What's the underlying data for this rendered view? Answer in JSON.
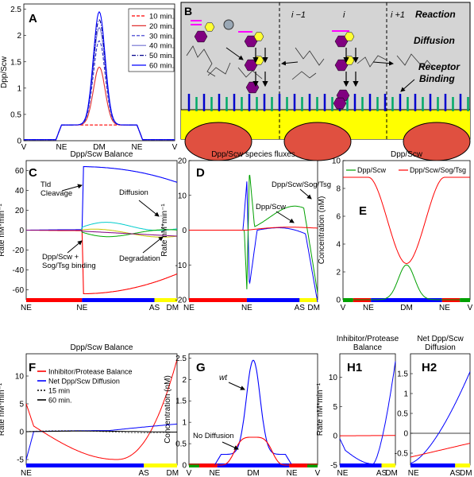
{
  "chart_data": [
    {
      "panel": "A",
      "type": "line",
      "ylabel": "Dpp/Scw",
      "xticks": [
        "V",
        "NE",
        "DM",
        "NE",
        "V"
      ],
      "ylim": [
        0,
        2.6
      ],
      "yticks": [
        "0",
        "0.5",
        "1",
        "1.5",
        "2",
        "2.5"
      ],
      "legend_position": "top-right",
      "series": [
        {
          "name": "10 min.",
          "color": "#ff0000",
          "dash": "dashed",
          "peak": 0.3
        },
        {
          "name": "20 min.",
          "color": "#e03030",
          "dash": "solid",
          "peak": 1.4
        },
        {
          "name": "30 min.",
          "color": "#3030cc",
          "dash": "dashed",
          "peak": 1.9
        },
        {
          "name": "40 min.",
          "color": "#7070d0",
          "dash": "solid",
          "peak": 2.15
        },
        {
          "name": "50 min.",
          "color": "#00008b",
          "dash": "dashdot",
          "peak": 2.3
        },
        {
          "name": "60 min.",
          "color": "#0000ff",
          "dash": "solid",
          "peak": 2.45
        }
      ]
    },
    {
      "panel": "C",
      "type": "line",
      "title": "Dpp/Scw Balance",
      "ylabel": "Rate nM*min⁻¹",
      "ylim": [
        -70,
        70
      ],
      "yticks": [
        "-60",
        "-40",
        "-20",
        "0",
        "20",
        "40",
        "60"
      ],
      "xticks": [
        "NE",
        "NE",
        "AS",
        "DM"
      ],
      "annotations": [
        "Tld\nCleavage",
        "Diffusion",
        "Dpp/Scw +\nSog/Tsg binding",
        "Degradation"
      ]
    },
    {
      "panel": "D",
      "type": "line",
      "title": "Dpp/Scw species fluxes",
      "ylabel": "Rate nM*min⁻¹",
      "ylim": [
        -20,
        20
      ],
      "yticks": [
        "-20",
        "-10",
        "0",
        "10",
        "20"
      ],
      "xticks": [
        "NE",
        "NE",
        "AS",
        "DM"
      ],
      "annotations": [
        "Dpp/Scw/Sog/Tsg",
        "Dpp/Scw"
      ]
    },
    {
      "panel": "E",
      "type": "line",
      "title": "Dpp/Scw",
      "ylabel": "Concentration (nM)",
      "ylim": [
        0,
        10
      ],
      "yticks": [
        "0",
        "2",
        "4",
        "6",
        "8",
        "10"
      ],
      "xticks": [
        "V",
        "NE",
        "DM",
        "NE",
        "V"
      ],
      "legend": [
        "Dpp/Scw",
        "Dpp/Scw/Sog/Tsg"
      ],
      "series": [
        {
          "name": "Dpp/Scw",
          "color": "#00a000",
          "center": 2.5,
          "edge": 0.0
        },
        {
          "name": "Dpp/Scw/Sog/Tsg",
          "color": "#ff0000",
          "center": 2.6,
          "edge": 8.8
        }
      ]
    },
    {
      "panel": "F",
      "type": "line",
      "title": "Dpp/Scw Balance",
      "ylabel": "Rate nM*min⁻¹",
      "ylim": [
        -6,
        14
      ],
      "yticks": [
        "-5",
        "0",
        "5",
        "10"
      ],
      "xticks": [
        "NE",
        "AS",
        "DM"
      ],
      "legend": [
        "Inhibitor/Protease Balance",
        "Net Dpp/Scw Diffusion",
        "15 min",
        "60 min."
      ],
      "series": [
        {
          "name": "Inhibitor/Protease Balance",
          "color": "#ff0000"
        },
        {
          "name": "Net Dpp/Scw Diffusion",
          "color": "#0000ff"
        }
      ]
    },
    {
      "panel": "G",
      "type": "line",
      "ylabel": "Concentration (nM)",
      "ylim": [
        0,
        2.6
      ],
      "yticks": [
        "0",
        "0.5",
        "1",
        "1.5",
        "2",
        "2.5"
      ],
      "xticks": [
        "V",
        "NE",
        "DM",
        "NE",
        "V"
      ],
      "annotations": [
        "wt",
        "No Diffusion"
      ],
      "series": [
        {
          "name": "wt",
          "color": "#0000ff",
          "peak": 2.45
        },
        {
          "name": "No Diffusion",
          "color": "#ff0000",
          "peak": 0.65
        }
      ]
    },
    {
      "panel": "H1",
      "type": "line",
      "title": "Inhibitor/Protease\nBalance",
      "ylabel": "Rate nM*min⁻¹",
      "ylim": [
        -5,
        14
      ],
      "yticks": [
        "-5",
        "0",
        "5",
        "10"
      ],
      "xticks": [
        "NE",
        "AS",
        "DM"
      ]
    },
    {
      "panel": "H2",
      "type": "line",
      "title": "Net Dpp/Scw\nDiffusion",
      "ylim": [
        -0.8,
        2.0
      ],
      "yticks": [
        "-0.5",
        "0",
        "0.5",
        "1",
        "1.5"
      ],
      "xticks": [
        "NE",
        "AS",
        "DM"
      ]
    }
  ],
  "diagram_B": {
    "panel": "B",
    "labels": [
      "Reaction",
      "Diffusion",
      "Receptor\nBinding"
    ],
    "compartments": [
      "i −1",
      "i",
      "i +1"
    ]
  },
  "colors": {
    "red": "#ff0000",
    "blue": "#0000ff",
    "green": "#00a000",
    "yellow": "#ffff00",
    "purple": "#800080"
  }
}
